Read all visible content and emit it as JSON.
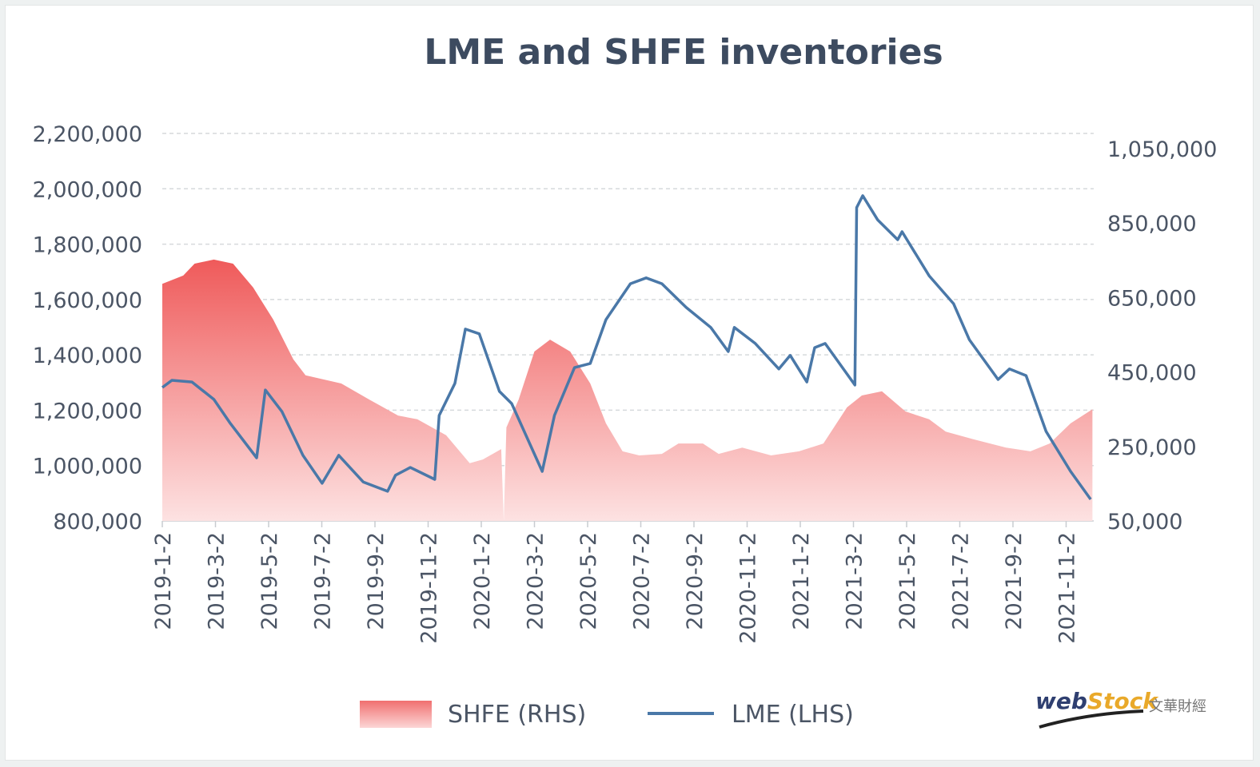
{
  "chart_data": {
    "type": "area+line",
    "title": "LME and SHFE inventories",
    "left_axis": {
      "ticks": [
        "800,000",
        "1,000,000",
        "1,200,000",
        "1,400,000",
        "1,600,000",
        "1,800,000",
        "2,000,000",
        "2,200,000"
      ],
      "range": [
        800000,
        2200000
      ]
    },
    "right_axis": {
      "ticks": [
        "50,000",
        "250,000",
        "450,000",
        "650,000",
        "850,000",
        "1,050,000"
      ],
      "range": [
        50000,
        1090000
      ]
    },
    "x_ticks": [
      "2019-1-2",
      "2019-3-2",
      "2019-5-2",
      "2019-7-2",
      "2019-9-2",
      "2019-11-2",
      "2020-1-2",
      "2020-3-2",
      "2020-5-2",
      "2020-7-2",
      "2020-9-2",
      "2020-11-2",
      "2021-1-2",
      "2021-3-2",
      "2021-5-2",
      "2021-7-2",
      "2021-9-2",
      "2021-11-2"
    ],
    "grid": true,
    "legend_position": "bottom",
    "series": [
      {
        "name": "SHFE (RHS)",
        "type": "area",
        "axis": "right",
        "color": "#f06a6a",
        "points": [
          [
            "2019-01-02",
            687000
          ],
          [
            "2019-01-26",
            709000
          ],
          [
            "2019-02-08",
            741000
          ],
          [
            "2019-03-02",
            752000
          ],
          [
            "2019-03-24",
            741000
          ],
          [
            "2019-04-16",
            677000
          ],
          [
            "2019-05-09",
            591000
          ],
          [
            "2019-06-01",
            484000
          ],
          [
            "2019-06-15",
            441000
          ],
          [
            "2019-07-26",
            419000
          ],
          [
            "2019-08-27",
            376000
          ],
          [
            "2019-09-29",
            333000
          ],
          [
            "2019-10-21",
            323000
          ],
          [
            "2019-11-23",
            280000
          ],
          [
            "2019-12-20",
            205000
          ],
          [
            "2020-01-04",
            215000
          ],
          [
            "2020-01-25",
            243000
          ],
          [
            "2020-01-28",
            50000
          ],
          [
            "2020-01-31",
            301000
          ],
          [
            "2020-02-14",
            376000
          ],
          [
            "2020-03-03",
            505000
          ],
          [
            "2020-03-21",
            537000
          ],
          [
            "2020-04-13",
            505000
          ],
          [
            "2020-05-06",
            419000
          ],
          [
            "2020-05-24",
            312000
          ],
          [
            "2020-06-12",
            237000
          ],
          [
            "2020-07-01",
            226000
          ],
          [
            "2020-07-27",
            230000
          ],
          [
            "2020-08-15",
            258000
          ],
          [
            "2020-09-12",
            258000
          ],
          [
            "2020-09-30",
            230000
          ],
          [
            "2020-10-27",
            247000
          ],
          [
            "2020-11-29",
            226000
          ],
          [
            "2020-12-31",
            237000
          ],
          [
            "2021-01-28",
            258000
          ],
          [
            "2021-02-24",
            355000
          ],
          [
            "2021-03-13",
            387000
          ],
          [
            "2021-04-05",
            398000
          ],
          [
            "2021-05-02",
            344000
          ],
          [
            "2021-05-29",
            323000
          ],
          [
            "2021-06-17",
            290000
          ],
          [
            "2021-07-19",
            269000
          ],
          [
            "2021-08-25",
            247000
          ],
          [
            "2021-09-22",
            237000
          ],
          [
            "2021-10-14",
            258000
          ],
          [
            "2021-11-07",
            312000
          ],
          [
            "2021-12-02",
            350000
          ]
        ]
      },
      {
        "name": "LME (LHS)",
        "type": "line",
        "axis": "left",
        "color": "#4a78a8",
        "points": [
          [
            "2019-01-02",
            1282000
          ],
          [
            "2019-01-13",
            1308000
          ],
          [
            "2019-02-05",
            1302000
          ],
          [
            "2019-03-02",
            1239000
          ],
          [
            "2019-03-21",
            1152000
          ],
          [
            "2019-04-20",
            1028000
          ],
          [
            "2019-04-30",
            1273000
          ],
          [
            "2019-05-19",
            1195000
          ],
          [
            "2019-06-12",
            1037000
          ],
          [
            "2019-07-04",
            936000
          ],
          [
            "2019-07-23",
            1037000
          ],
          [
            "2019-08-20",
            941000
          ],
          [
            "2019-09-17",
            907000
          ],
          [
            "2019-09-26",
            965000
          ],
          [
            "2019-10-13",
            993000
          ],
          [
            "2019-11-10",
            950000
          ],
          [
            "2019-11-15",
            1181000
          ],
          [
            "2019-12-03",
            1297000
          ],
          [
            "2019-12-15",
            1493000
          ],
          [
            "2019-12-31",
            1476000
          ],
          [
            "2020-01-23",
            1268000
          ],
          [
            "2020-02-06",
            1224000
          ],
          [
            "2020-03-12",
            979000
          ],
          [
            "2020-03-26",
            1181000
          ],
          [
            "2020-04-18",
            1354000
          ],
          [
            "2020-05-06",
            1369000
          ],
          [
            "2020-05-24",
            1527000
          ],
          [
            "2020-06-21",
            1657000
          ],
          [
            "2020-07-09",
            1678000
          ],
          [
            "2020-07-27",
            1657000
          ],
          [
            "2020-08-24",
            1571000
          ],
          [
            "2020-09-21",
            1499000
          ],
          [
            "2020-10-11",
            1412000
          ],
          [
            "2020-10-18",
            1499000
          ],
          [
            "2020-11-11",
            1441000
          ],
          [
            "2020-12-08",
            1349000
          ],
          [
            "2020-12-21",
            1398000
          ],
          [
            "2021-01-09",
            1302000
          ],
          [
            "2021-01-18",
            1426000
          ],
          [
            "2021-01-30",
            1441000
          ],
          [
            "2021-03-05",
            1291000
          ],
          [
            "2021-03-07",
            1932000
          ],
          [
            "2021-03-14",
            1975000
          ],
          [
            "2021-03-31",
            1888000
          ],
          [
            "2021-04-23",
            1816000
          ],
          [
            "2021-04-28",
            1845000
          ],
          [
            "2021-05-29",
            1686000
          ],
          [
            "2021-06-26",
            1585000
          ],
          [
            "2021-07-14",
            1455000
          ],
          [
            "2021-08-16",
            1311000
          ],
          [
            "2021-08-29",
            1349000
          ],
          [
            "2021-09-17",
            1325000
          ],
          [
            "2021-10-10",
            1123000
          ],
          [
            "2021-11-07",
            979000
          ],
          [
            "2021-11-30",
            878000
          ]
        ]
      }
    ]
  },
  "logo": {
    "text": "webStock",
    "chinese": "文華財經"
  }
}
